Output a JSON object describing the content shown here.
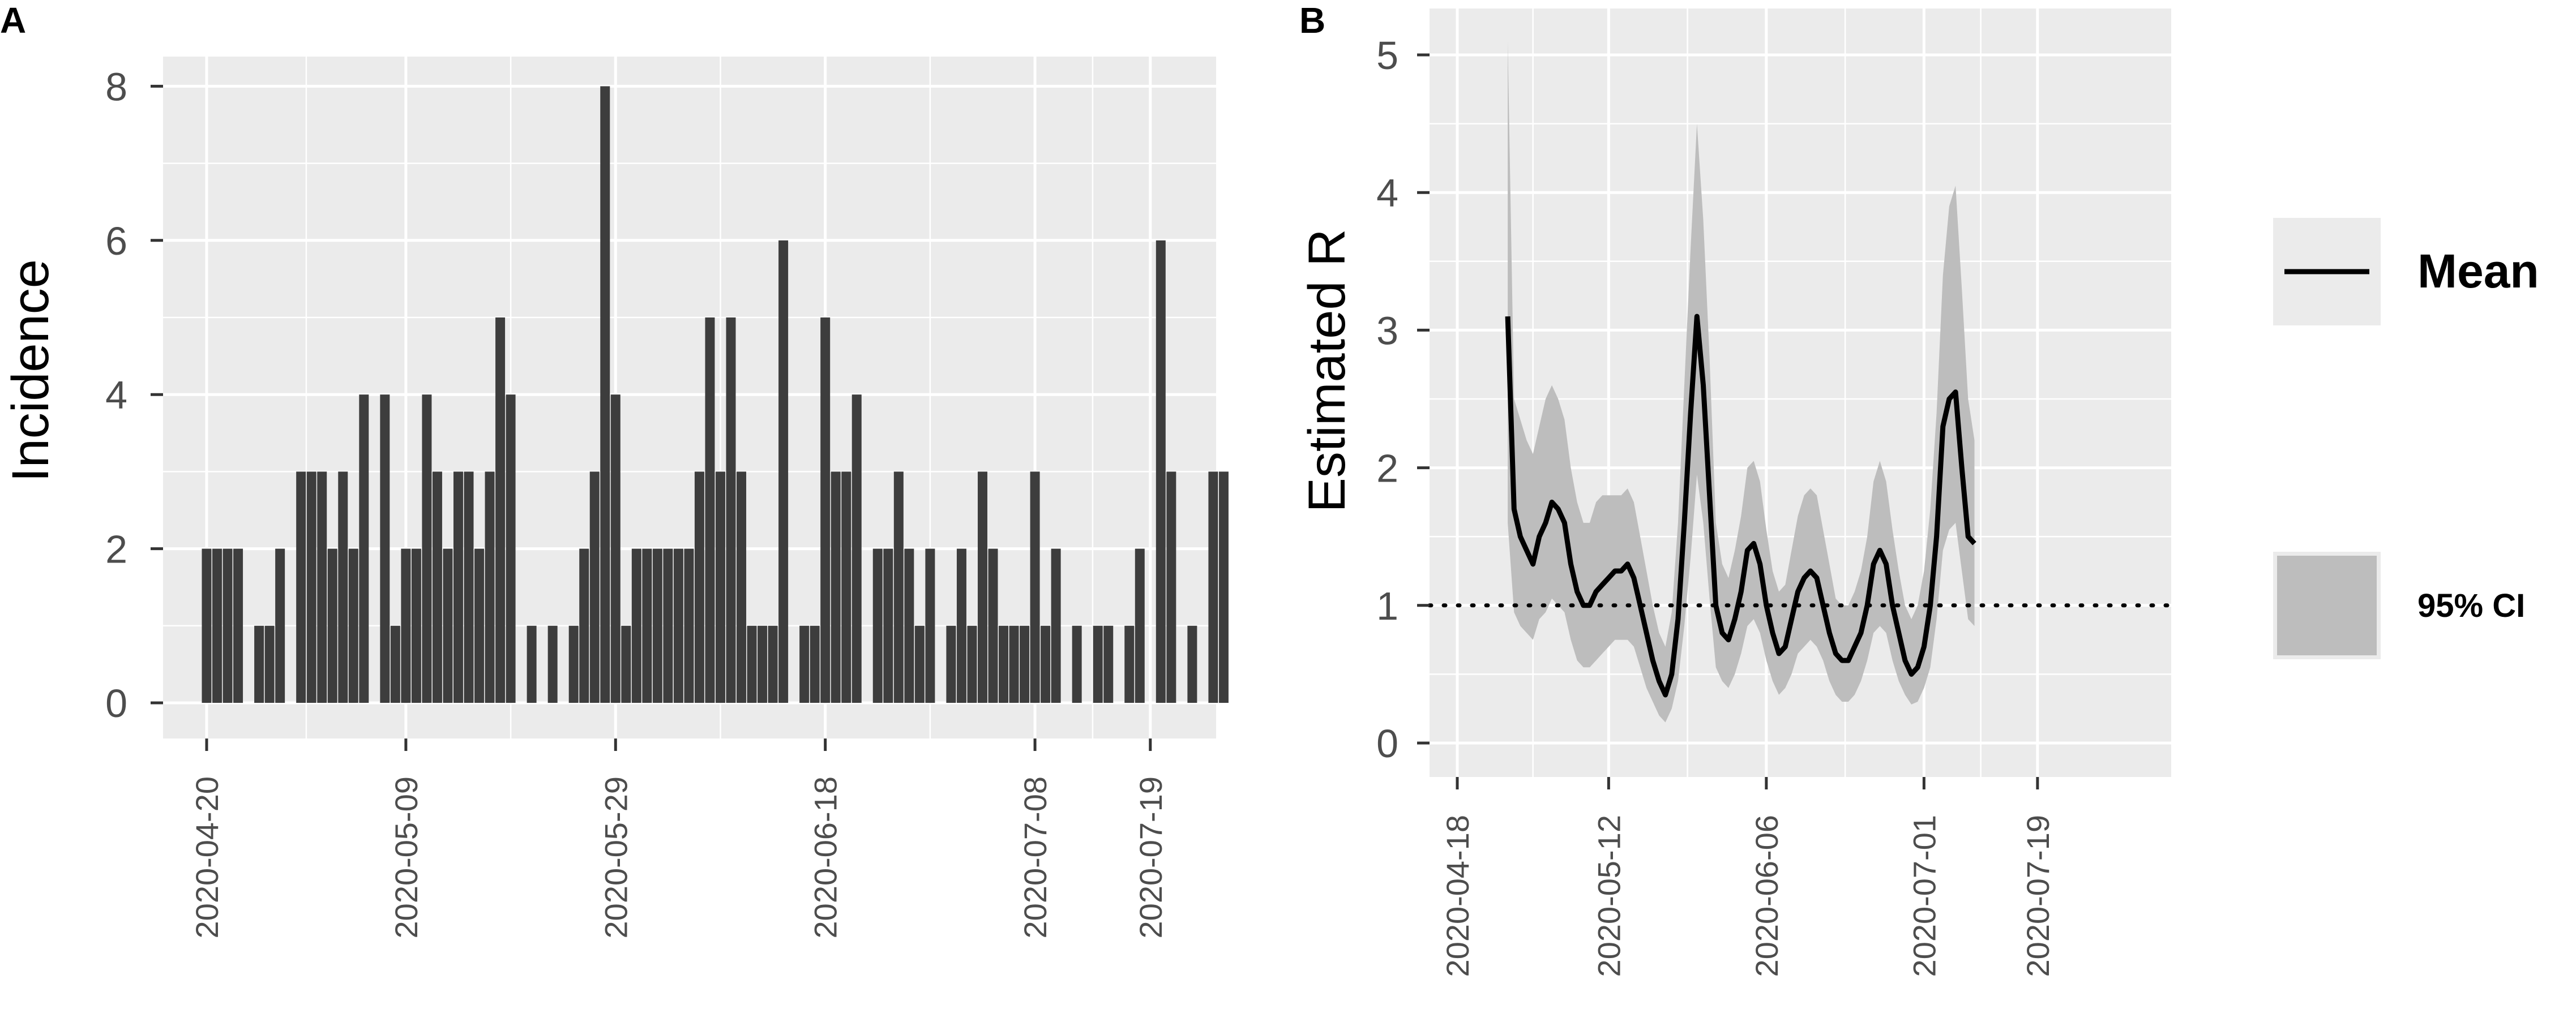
{
  "panels": {
    "a": "A",
    "b": "B"
  },
  "chart_data": [
    {
      "type": "bar",
      "panel": "A",
      "ylabel": "Incidence",
      "xlabel": "",
      "ylim": [
        0,
        8.4
      ],
      "yticks": [
        0,
        2,
        4,
        6,
        8
      ],
      "xticks": [
        "2020-04-20",
        "2020-05-09",
        "2020-05-29",
        "2020-06-18",
        "2020-07-08",
        "2020-07-19"
      ],
      "start_date": "2020-04-20",
      "grid": true,
      "bar_color": "#3d3d3d",
      "values": [
        2,
        2,
        2,
        2,
        0,
        1,
        1,
        2,
        0,
        3,
        3,
        3,
        2,
        3,
        2,
        4,
        0,
        4,
        1,
        2,
        2,
        4,
        3,
        2,
        3,
        3,
        2,
        3,
        5,
        4,
        0,
        1,
        0,
        1,
        0,
        1,
        2,
        3,
        8,
        4,
        1,
        2,
        2,
        2,
        2,
        2,
        2,
        3,
        5,
        3,
        5,
        3,
        1,
        1,
        1,
        6,
        0,
        1,
        1,
        5,
        3,
        3,
        4,
        0,
        2,
        2,
        3,
        2,
        1,
        2,
        0,
        1,
        2,
        1,
        3,
        2,
        1,
        1,
        1,
        3,
        1,
        2,
        0,
        1,
        0,
        1,
        1,
        0,
        1,
        2,
        0,
        6,
        3,
        0,
        1,
        0,
        3,
        3
      ]
    },
    {
      "type": "line",
      "panel": "B",
      "ylabel": "Estimated R",
      "xlabel": "",
      "ylim": [
        -0.2,
        5.2
      ],
      "yticks": [
        0,
        1,
        2,
        3,
        4,
        5
      ],
      "xticks": [
        "2020-04-18",
        "2020-05-12",
        "2020-06-06",
        "2020-07-01",
        "2020-07-19"
      ],
      "start_date": "2020-04-26",
      "grid": true,
      "threshold": 1,
      "legend": {
        "mean": "Mean",
        "ci": "95% CI"
      },
      "colors": {
        "mean": "#000000",
        "ci": "#bdbdbd"
      },
      "series": [
        {
          "name": "Mean",
          "values": [
            3.1,
            1.7,
            1.5,
            1.4,
            1.3,
            1.5,
            1.6,
            1.75,
            1.7,
            1.6,
            1.3,
            1.1,
            1.0,
            1.0,
            1.1,
            1.15,
            1.2,
            1.25,
            1.25,
            1.3,
            1.2,
            1.0,
            0.8,
            0.6,
            0.45,
            0.35,
            0.5,
            0.9,
            1.6,
            2.4,
            3.1,
            2.6,
            1.8,
            1.0,
            0.8,
            0.75,
            0.9,
            1.1,
            1.4,
            1.45,
            1.3,
            1.0,
            0.8,
            0.65,
            0.7,
            0.9,
            1.1,
            1.2,
            1.25,
            1.2,
            1.0,
            0.8,
            0.65,
            0.6,
            0.6,
            0.7,
            0.8,
            1.0,
            1.3,
            1.4,
            1.3,
            1.0,
            0.8,
            0.6,
            0.5,
            0.55,
            0.7,
            1.0,
            1.5,
            2.3,
            2.5,
            2.55,
            2.0,
            1.5,
            1.45
          ]
        },
        {
          "name": "95% CI upper",
          "values": [
            5.1,
            2.5,
            2.35,
            2.2,
            2.1,
            2.3,
            2.5,
            2.6,
            2.5,
            2.35,
            2.0,
            1.75,
            1.6,
            1.6,
            1.75,
            1.8,
            1.8,
            1.8,
            1.8,
            1.85,
            1.75,
            1.5,
            1.25,
            1.0,
            0.8,
            0.7,
            0.95,
            1.6,
            2.6,
            3.6,
            4.5,
            3.8,
            2.8,
            1.6,
            1.3,
            1.2,
            1.4,
            1.65,
            2.0,
            2.05,
            1.9,
            1.55,
            1.25,
            1.1,
            1.15,
            1.4,
            1.65,
            1.8,
            1.85,
            1.8,
            1.55,
            1.3,
            1.05,
            1.0,
            1.0,
            1.1,
            1.25,
            1.5,
            1.9,
            2.05,
            1.9,
            1.55,
            1.25,
            1.0,
            0.9,
            1.0,
            1.25,
            1.7,
            2.4,
            3.4,
            3.9,
            4.05,
            3.3,
            2.5,
            2.2
          ]
        },
        {
          "name": "95% CI lower",
          "values": [
            1.6,
            0.95,
            0.85,
            0.8,
            0.75,
            0.9,
            0.95,
            1.05,
            1.0,
            0.95,
            0.75,
            0.6,
            0.55,
            0.55,
            0.6,
            0.65,
            0.7,
            0.75,
            0.75,
            0.75,
            0.7,
            0.55,
            0.4,
            0.3,
            0.2,
            0.15,
            0.25,
            0.45,
            0.85,
            1.35,
            1.95,
            1.6,
            1.05,
            0.55,
            0.45,
            0.4,
            0.5,
            0.65,
            0.85,
            0.9,
            0.8,
            0.6,
            0.45,
            0.35,
            0.4,
            0.5,
            0.65,
            0.7,
            0.75,
            0.7,
            0.6,
            0.45,
            0.35,
            0.3,
            0.3,
            0.35,
            0.45,
            0.6,
            0.8,
            0.85,
            0.8,
            0.6,
            0.45,
            0.35,
            0.28,
            0.3,
            0.4,
            0.55,
            0.9,
            1.4,
            1.55,
            1.6,
            1.25,
            0.9,
            0.85
          ]
        }
      ]
    }
  ]
}
